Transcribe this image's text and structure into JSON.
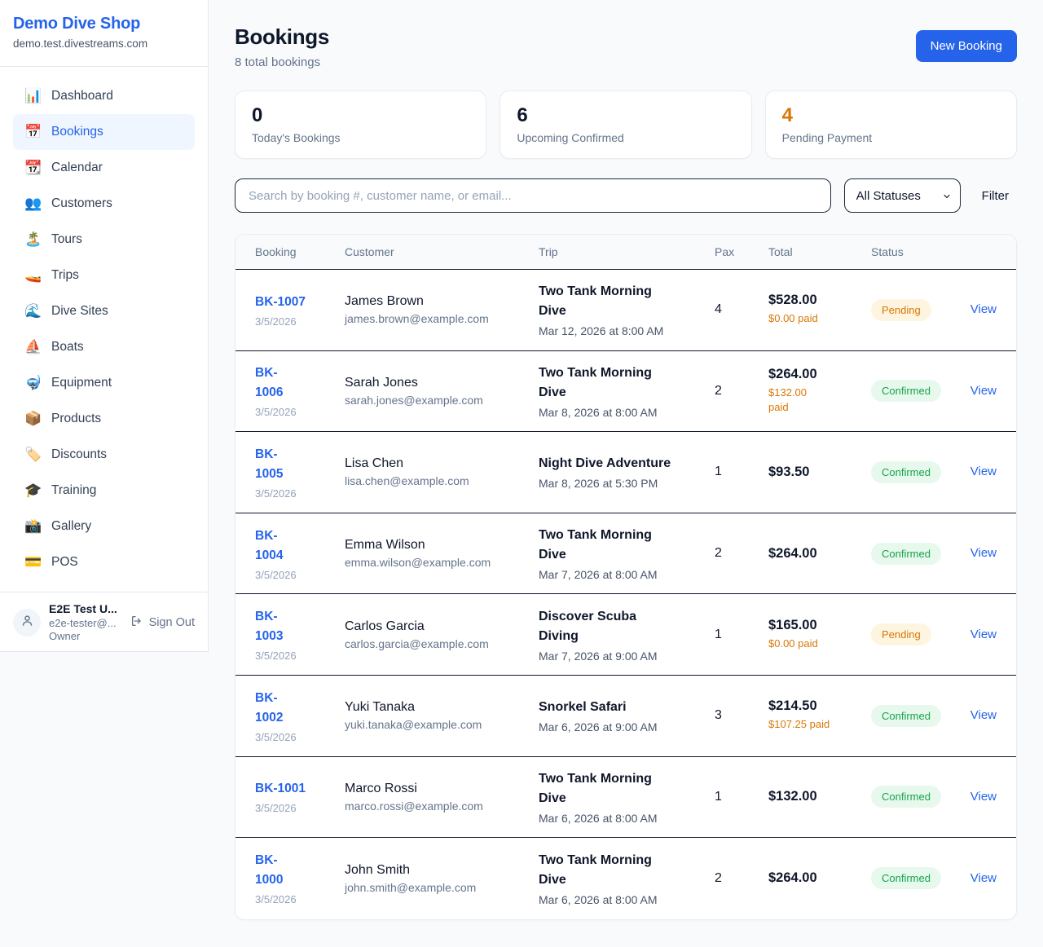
{
  "sidebar": {
    "brand": {
      "name": "Demo Dive Shop",
      "domain": "demo.test.divestreams.com"
    },
    "items": [
      {
        "icon": "📊",
        "icon_name": "dashboard-icon",
        "label": "Dashboard",
        "active": false
      },
      {
        "icon": "📅",
        "icon_name": "bookings-icon",
        "label": "Bookings",
        "active": true
      },
      {
        "icon": "📆",
        "icon_name": "calendar-icon",
        "label": "Calendar",
        "active": false
      },
      {
        "icon": "👥",
        "icon_name": "customers-icon",
        "label": "Customers",
        "active": false
      },
      {
        "icon": "🏝️",
        "icon_name": "tours-icon",
        "label": "Tours",
        "active": false
      },
      {
        "icon": "🚤",
        "icon_name": "trips-icon",
        "label": "Trips",
        "active": false
      },
      {
        "icon": "🌊",
        "icon_name": "dive-sites-icon",
        "label": "Dive Sites",
        "active": false
      },
      {
        "icon": "⛵",
        "icon_name": "boats-icon",
        "label": "Boats",
        "active": false
      },
      {
        "icon": "🤿",
        "icon_name": "equipment-icon",
        "label": "Equipment",
        "active": false
      },
      {
        "icon": "📦",
        "icon_name": "products-icon",
        "label": "Products",
        "active": false
      },
      {
        "icon": "🏷️",
        "icon_name": "discounts-icon",
        "label": "Discounts",
        "active": false
      },
      {
        "icon": "🎓",
        "icon_name": "training-icon",
        "label": "Training",
        "active": false
      },
      {
        "icon": "📸",
        "icon_name": "gallery-icon",
        "label": "Gallery",
        "active": false
      },
      {
        "icon": "💳",
        "icon_name": "pos-icon",
        "label": "POS",
        "active": false
      }
    ],
    "user": {
      "name": "E2E Test U...",
      "email": "e2e-tester@...",
      "role": "Owner",
      "sign_out_label": "Sign Out"
    }
  },
  "header": {
    "title": "Bookings",
    "subtitle": "8 total bookings",
    "new_booking_label": "New Booking"
  },
  "stats": [
    {
      "value": "0",
      "label": "Today's Bookings",
      "color": "#0f172a"
    },
    {
      "value": "6",
      "label": "Upcoming Confirmed",
      "color": "#0f172a"
    },
    {
      "value": "4",
      "label": "Pending Payment",
      "color": "#d97706"
    }
  ],
  "filters": {
    "search_placeholder": "Search by booking #, customer name, or email...",
    "status_selected": "All Statuses",
    "filter_label": "Filter"
  },
  "table": {
    "columns": [
      "Booking",
      "Customer",
      "Trip",
      "Pax",
      "Total",
      "Status"
    ],
    "view_label": "View",
    "rows": [
      {
        "id": "BK-1007",
        "date": "3/5/2026",
        "customer": "James Brown",
        "email": "james.brown@example.com",
        "trip": "Two Tank Morning\nDive",
        "trip_time": "Mar 12, 2026 at 8:00 AM",
        "pax": "4",
        "total": "$528.00",
        "paid": "$0.00 paid",
        "status": "Pending"
      },
      {
        "id": "BK-\n1006",
        "date": "3/5/2026",
        "customer": "Sarah Jones",
        "email": "sarah.jones@example.com",
        "trip": "Two Tank Morning\nDive",
        "trip_time": "Mar 8, 2026 at 8:00 AM",
        "pax": "2",
        "total": "$264.00",
        "paid": "$132.00\npaid",
        "status": "Confirmed"
      },
      {
        "id": "BK-\n1005",
        "date": "3/5/2026",
        "customer": "Lisa Chen",
        "email": "lisa.chen@example.com",
        "trip": "Night Dive Adventure",
        "trip_time": "Mar 8, 2026 at 5:30 PM",
        "pax": "1",
        "total": "$93.50",
        "paid": null,
        "status": "Confirmed"
      },
      {
        "id": "BK-\n1004",
        "date": "3/5/2026",
        "customer": "Emma Wilson",
        "email": "emma.wilson@example.com",
        "trip": "Two Tank Morning\nDive",
        "trip_time": "Mar 7, 2026 at 8:00 AM",
        "pax": "2",
        "total": "$264.00",
        "paid": null,
        "status": "Confirmed"
      },
      {
        "id": "BK-\n1003",
        "date": "3/5/2026",
        "customer": "Carlos Garcia",
        "email": "carlos.garcia@example.com",
        "trip": "Discover Scuba\nDiving",
        "trip_time": "Mar 7, 2026 at 9:00 AM",
        "pax": "1",
        "total": "$165.00",
        "paid": "$0.00 paid",
        "status": "Pending"
      },
      {
        "id": "BK-\n1002",
        "date": "3/5/2026",
        "customer": "Yuki Tanaka",
        "email": "yuki.tanaka@example.com",
        "trip": "Snorkel Safari",
        "trip_time": "Mar 6, 2026 at 9:00 AM",
        "pax": "3",
        "total": "$214.50",
        "paid": "$107.25 paid",
        "status": "Confirmed"
      },
      {
        "id": "BK-1001",
        "date": "3/5/2026",
        "customer": "Marco Rossi",
        "email": "marco.rossi@example.com",
        "trip": "Two Tank Morning\nDive",
        "trip_time": "Mar 6, 2026 at 8:00 AM",
        "pax": "1",
        "total": "$132.00",
        "paid": null,
        "status": "Confirmed"
      },
      {
        "id": "BK-\n1000",
        "date": "3/5/2026",
        "customer": "John Smith",
        "email": "john.smith@example.com",
        "trip": "Two Tank Morning\nDive",
        "trip_time": "Mar 6, 2026 at 8:00 AM",
        "pax": "2",
        "total": "$264.00",
        "paid": null,
        "status": "Confirmed"
      }
    ]
  },
  "colors": {
    "accent_blue": "#2563eb",
    "pending_text": "#d97706",
    "pending_bg": "#fdf5df",
    "confirmed_text": "#16a34a",
    "confirmed_bg": "#e7f8ed",
    "row_divider": "#0f172a",
    "page_bg": "#f8fafc"
  }
}
